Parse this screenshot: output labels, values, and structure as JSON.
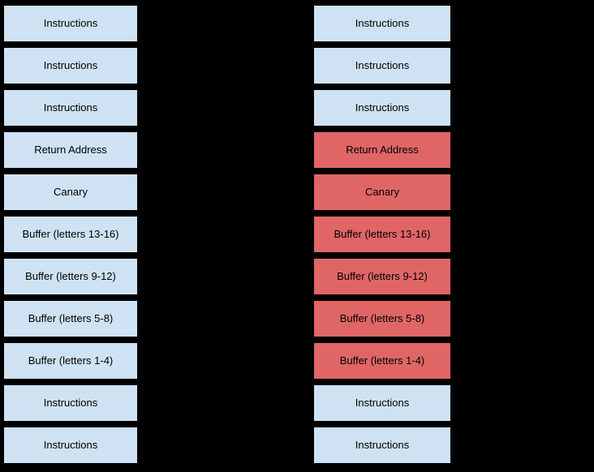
{
  "diagram": {
    "title": "stack-memory-before-after-overflow",
    "colors": {
      "normal_fill": "#cfe2f3",
      "overwritten_fill": "#e06666",
      "border": "#000000",
      "text": "#000000",
      "background": "#000000"
    },
    "left_stack": {
      "cells": [
        {
          "label": "Instructions",
          "state": "normal"
        },
        {
          "label": "Instructions",
          "state": "normal"
        },
        {
          "label": "Instructions",
          "state": "normal"
        },
        {
          "label": "Return Address",
          "state": "normal"
        },
        {
          "label": "Canary",
          "state": "normal"
        },
        {
          "label": "Buffer (letters 13-16)",
          "state": "normal"
        },
        {
          "label": "Buffer (letters 9-12)",
          "state": "normal"
        },
        {
          "label": "Buffer (letters 5-8)",
          "state": "normal"
        },
        {
          "label": "Buffer (letters 1-4)",
          "state": "normal"
        },
        {
          "label": "Instructions",
          "state": "normal"
        },
        {
          "label": "Instructions",
          "state": "normal"
        }
      ]
    },
    "right_stack": {
      "cells": [
        {
          "label": "Instructions",
          "state": "normal"
        },
        {
          "label": "Instructions",
          "state": "normal"
        },
        {
          "label": "Instructions",
          "state": "normal"
        },
        {
          "label": "Return Address",
          "state": "overwritten"
        },
        {
          "label": "Canary",
          "state": "overwritten"
        },
        {
          "label": "Buffer (letters 13-16)",
          "state": "overwritten"
        },
        {
          "label": "Buffer (letters 9-12)",
          "state": "overwritten"
        },
        {
          "label": "Buffer (letters 5-8)",
          "state": "overwritten"
        },
        {
          "label": "Buffer (letters 1-4)",
          "state": "overwritten"
        },
        {
          "label": "Instructions",
          "state": "normal"
        },
        {
          "label": "Instructions",
          "state": "normal"
        }
      ]
    }
  }
}
